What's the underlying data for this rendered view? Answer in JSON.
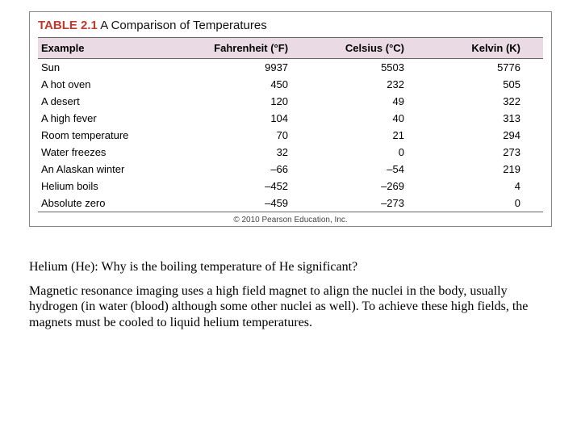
{
  "table": {
    "number": "TABLE 2.1",
    "title": "A Comparison of Temperatures",
    "header_bg": "#eadae4",
    "number_color": "#c0392b",
    "border_color": "#888888",
    "rule_color": "#666666",
    "title_fontsize": 15,
    "body_fontsize": 13,
    "columns": [
      "Example",
      "Fahrenheit (°F)",
      "Celsius (°C)",
      "Kelvin (K)"
    ],
    "col_widths_pct": [
      30,
      24,
      23,
      23
    ],
    "col_align": [
      "left",
      "right",
      "right",
      "right"
    ],
    "rows": [
      [
        "Sun",
        "9937",
        "5503",
        "5776"
      ],
      [
        "A hot oven",
        "450",
        "232",
        "505"
      ],
      [
        "A desert",
        "120",
        "49",
        "322"
      ],
      [
        "A high fever",
        "104",
        "40",
        "313"
      ],
      [
        "Room temperature",
        "70",
        "21",
        "294"
      ],
      [
        "Water freezes",
        "32",
        "0",
        "273"
      ],
      [
        "An Alaskan winter",
        "–66",
        "–54",
        "219"
      ],
      [
        "Helium boils",
        "–452",
        "–269",
        "4"
      ],
      [
        "Absolute zero",
        "–459",
        "–273",
        "0"
      ]
    ]
  },
  "copyright": "© 2010 Pearson Education, Inc.",
  "question": "Helium (He): Why is the boiling temperature of He significant?",
  "answer": "Magnetic resonance imaging uses a high field magnet to align the nuclei in the body, usually hydrogen (in water (blood) although some other nuclei as well). To achieve these high fields, the magnets must be cooled to liquid helium temperatures.",
  "body_fontsize": 16
}
